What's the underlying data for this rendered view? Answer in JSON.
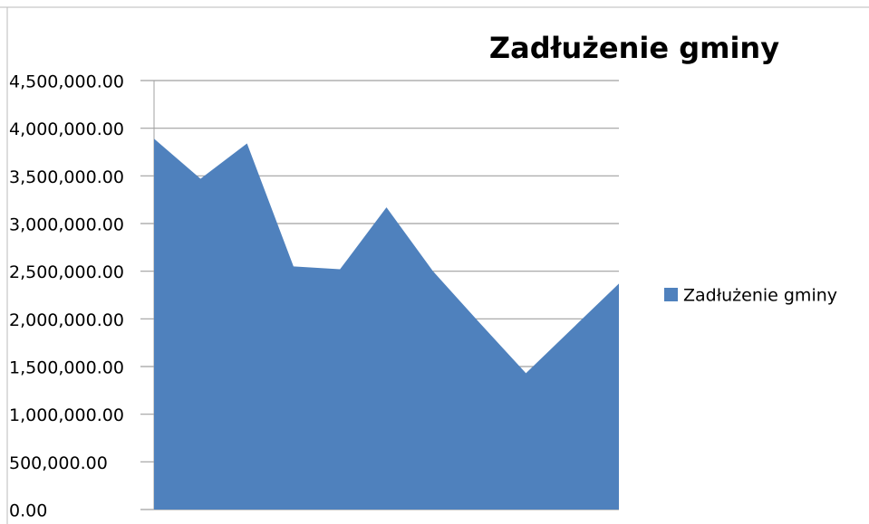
{
  "chart_data": {
    "type": "area",
    "title": "Zadłużenie gminy",
    "categories": [
      null,
      null,
      null,
      null,
      null,
      null,
      null,
      null,
      null,
      null,
      null
    ],
    "series": [
      {
        "name": "Zadłużenie gminy",
        "color": "#4f81bd",
        "values": [
          3890000,
          3470000,
          3840000,
          2550000,
          2520000,
          3170000,
          2500000,
          1960000,
          1430000,
          1900000,
          2370000
        ]
      }
    ],
    "ylim": [
      0,
      4500000
    ],
    "yticks": [
      {
        "value": 0,
        "label": "0.00"
      },
      {
        "value": 500000,
        "label": "500,000.00"
      },
      {
        "value": 1000000,
        "label": "1,000,000.00"
      },
      {
        "value": 1500000,
        "label": "1,500,000.00"
      },
      {
        "value": 2000000,
        "label": "2,000,000.00"
      },
      {
        "value": 2500000,
        "label": "2,500,000.00"
      },
      {
        "value": 3000000,
        "label": "3,000,000.00"
      },
      {
        "value": 3500000,
        "label": "3,500,000.00"
      },
      {
        "value": 4000000,
        "label": "4,000,000.00"
      },
      {
        "value": 4500000,
        "label": "4,500,000.00"
      }
    ],
    "grid": true,
    "legend": "right"
  }
}
